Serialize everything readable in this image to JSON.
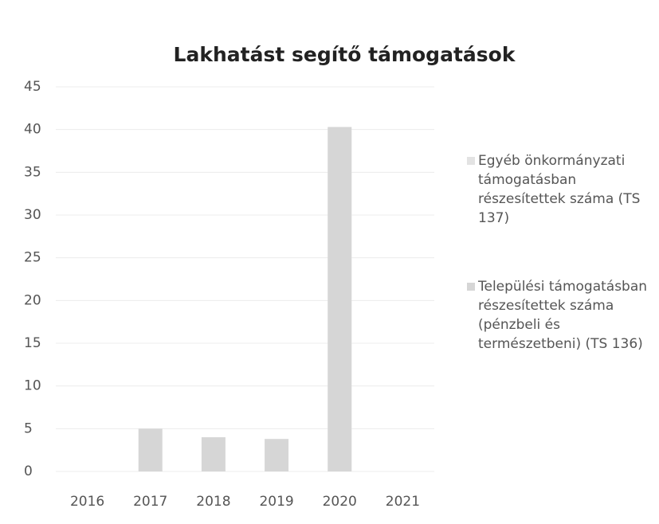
{
  "chart_data": {
    "type": "bar",
    "stacked": true,
    "title": "Lakhatást segítő támogatások",
    "categories": [
      "2016",
      "2017",
      "2018",
      "2019",
      "2020",
      "2021"
    ],
    "series": [
      {
        "name": "Egyéb önkormányzati támogatásban részesítettek száma (TS 137)",
        "color": "#e3e3e3",
        "values": [
          0,
          0,
          0,
          0,
          0,
          0
        ]
      },
      {
        "name": "Települési támogatásban részesítettek száma (pénzbeli és természetbeni) (TS 136)",
        "color": "#d6d6d6",
        "values": [
          0,
          5,
          4,
          3.8,
          40.3,
          0
        ]
      }
    ],
    "ylim": [
      0,
      45
    ],
    "yticks": [
      0,
      5,
      10,
      15,
      20,
      25,
      30,
      35,
      40,
      45
    ],
    "grid": true,
    "legend": "right"
  }
}
